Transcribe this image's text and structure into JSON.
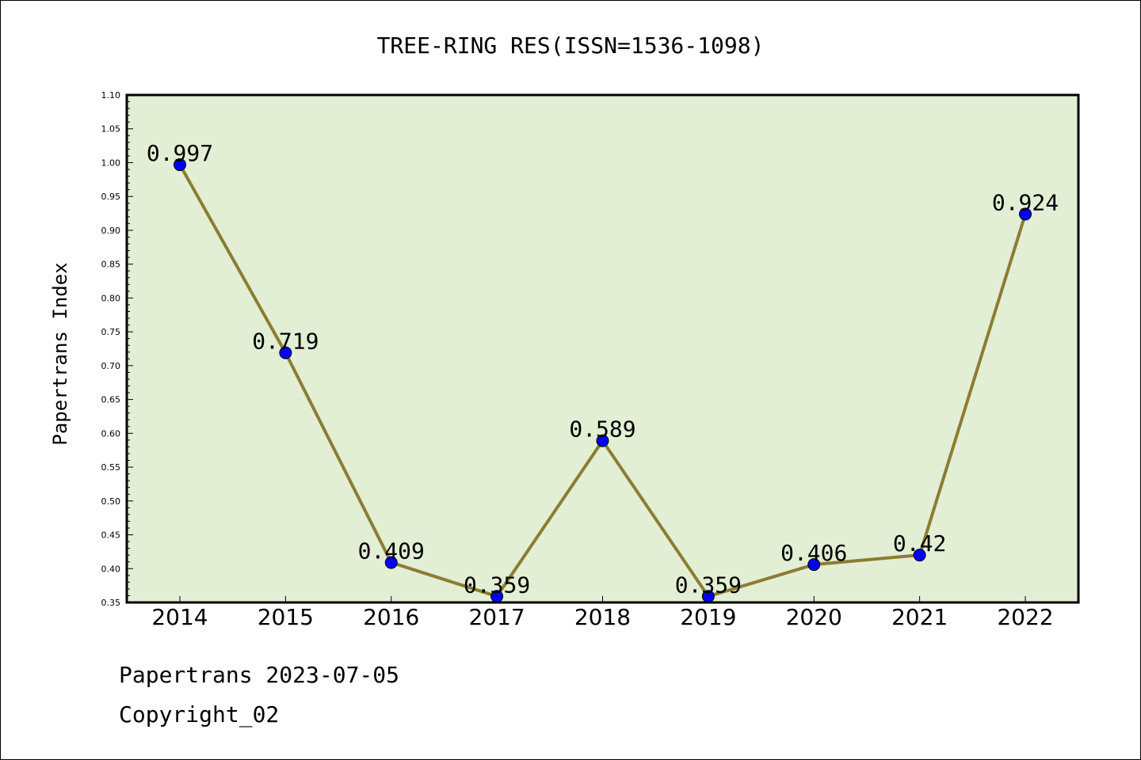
{
  "chart_data": {
    "type": "line",
    "title": "TREE-RING RES(ISSN=1536-1098)",
    "xlabel": "",
    "ylabel": "Papertrans Index",
    "categories": [
      "2014",
      "2015",
      "2016",
      "2017",
      "2018",
      "2019",
      "2020",
      "2021",
      "2022"
    ],
    "series": [
      {
        "values": [
          0.997,
          0.719,
          0.409,
          0.359,
          0.589,
          0.359,
          0.406,
          0.42,
          0.924
        ],
        "data_labels": [
          "0.997",
          "0.719",
          "0.409",
          "0.359",
          "0.589",
          "0.359",
          "0.406",
          "0.42",
          "0.924"
        ],
        "line_color": "#8b7d32",
        "marker_color": "#0000ff"
      }
    ],
    "ylim": [
      0.35,
      1.1
    ],
    "yticks": [
      "0.35",
      "0.40",
      "0.45",
      "0.50",
      "0.55",
      "0.60",
      "0.65",
      "0.70",
      "0.75",
      "0.80",
      "0.85",
      "0.90",
      "0.95",
      "1.00",
      "1.05",
      "1.10"
    ],
    "grid": false,
    "legend": "none",
    "plot_background": "#e2efd5"
  },
  "footer": {
    "line1": "Papertrans 2023-07-05",
    "line2": "Copyright_02"
  }
}
